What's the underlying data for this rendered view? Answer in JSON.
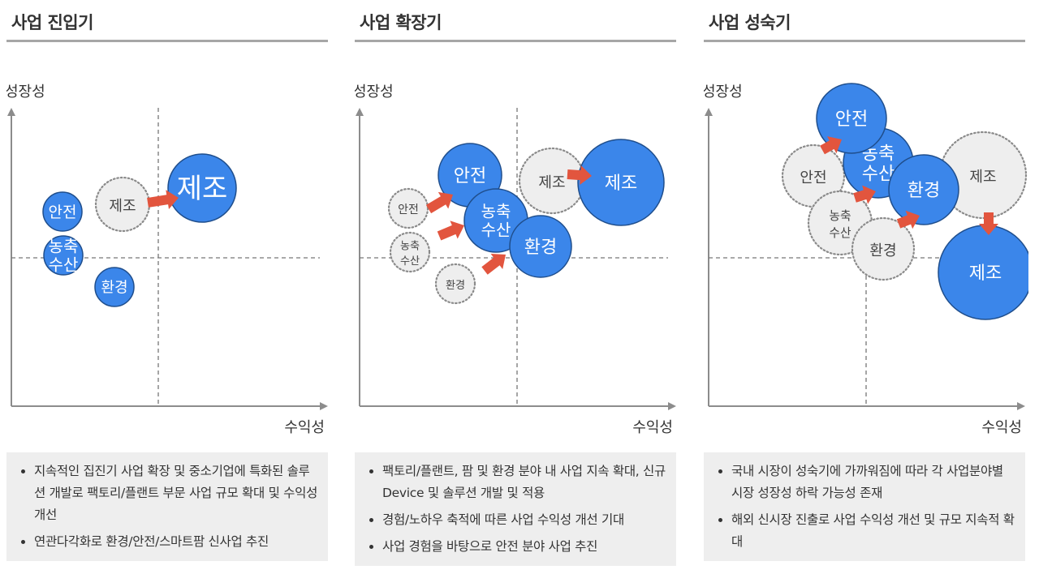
{
  "colors": {
    "accent_blue": "#3b86ea",
    "arrow_red": "#e2553e",
    "ghost_fill": "#eeeeee",
    "axis": "#8c8c8c"
  },
  "panels": [
    {
      "title": "사업 진입기",
      "y_label": "성장성",
      "x_label": "수익성",
      "bullets": [
        "지속적인 집진기 사업 확장 및 중소기업에 특화된 솔루션 개발로 팩토리/플랜트 부문 사업 규모 확대 및 수익성 개선",
        "연관다각화로 환경/안전/스마트팜 신사업 추진"
      ],
      "bubbles": [
        {
          "label": "제조",
          "style": "ghost"
        },
        {
          "label": "제조",
          "style": "solid"
        },
        {
          "label": "안전",
          "style": "solid"
        },
        {
          "label": "농축\n수산",
          "style": "solid"
        },
        {
          "label": "환경",
          "style": "solid"
        }
      ]
    },
    {
      "title": "사업 확장기",
      "y_label": "성장성",
      "x_label": "수익성",
      "bullets": [
        "팩토리/플랜트, 팜 및 환경 분야 내 사업 지속 확대, 신규 Device 및 솔루션 개발 및 적용",
        "경험/노하우 축적에 따른 사업 수익성 개선 기대",
        "사업 경험을 바탕으로 안전 분야 사업 추진"
      ],
      "bubbles": [
        {
          "label": "안전",
          "style": "ghost"
        },
        {
          "label": "농축\n수산",
          "style": "ghost"
        },
        {
          "label": "환경",
          "style": "ghost"
        },
        {
          "label": "제조",
          "style": "ghost"
        },
        {
          "label": "안전",
          "style": "solid"
        },
        {
          "label": "농축\n수산",
          "style": "solid"
        },
        {
          "label": "환경",
          "style": "solid"
        },
        {
          "label": "제조",
          "style": "solid"
        }
      ]
    },
    {
      "title": "사업 성숙기",
      "y_label": "성장성",
      "x_label": "수익성",
      "bullets": [
        "국내 시장이 성숙기에 가까워짐에 따라 각 사업분야별 시장 성장성 하락 가능성 존재",
        "해외 신시장 진출로 사업 수익성 개선 및 규모 지속적 확대"
      ],
      "bubbles": [
        {
          "label": "안전",
          "style": "ghost"
        },
        {
          "label": "농축\n수산",
          "style": "ghost"
        },
        {
          "label": "환경",
          "style": "ghost"
        },
        {
          "label": "제조",
          "style": "ghost"
        },
        {
          "label": "농축\n수산",
          "style": "solid"
        },
        {
          "label": "안전",
          "style": "solid"
        },
        {
          "label": "환경",
          "style": "solid"
        },
        {
          "label": "제조",
          "style": "solid"
        }
      ]
    }
  ]
}
